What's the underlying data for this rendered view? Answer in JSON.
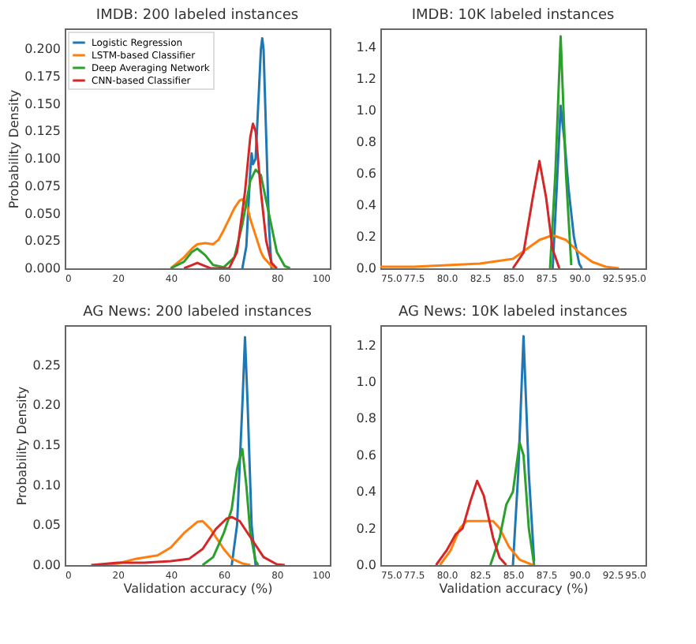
{
  "chart_data": [
    {
      "type": "line",
      "title": "IMDB: 200 labeled instances",
      "ylabel": "Probability Density",
      "legend": "top left",
      "xlim": [
        0,
        100
      ],
      "xticks": [
        0,
        20,
        40,
        60,
        80,
        100
      ],
      "ylim": [
        0,
        0.219
      ],
      "yticks": [
        {
          "value": 0,
          "label": "0.000"
        },
        {
          "value": 0.025,
          "label": "0.025"
        },
        {
          "value": 0.05,
          "label": "0.050"
        },
        {
          "value": 0.075,
          "label": "0.075"
        },
        {
          "value": 0.1,
          "label": "0.100"
        },
        {
          "value": 0.125,
          "label": "0.125"
        },
        {
          "value": 0.15,
          "label": "0.150"
        },
        {
          "value": 0.175,
          "label": "0.175"
        },
        {
          "value": 0.2,
          "label": "0.200"
        }
      ],
      "series": [
        {
          "name": "Logistic Regression",
          "color": "#1f77b4",
          "x": [
            67,
            68.5,
            70,
            70.5,
            71,
            72,
            73,
            74,
            74.5,
            75,
            76,
            77,
            78
          ],
          "values": [
            0,
            0.02,
            0.09,
            0.105,
            0.095,
            0.1,
            0.15,
            0.2,
            0.21,
            0.2,
            0.12,
            0.04,
            0
          ]
        },
        {
          "name": "LSTM-based Classifier",
          "color": "#ff7f0e",
          "x": [
            40,
            45,
            48,
            50,
            53,
            56,
            58,
            60,
            62,
            64,
            66,
            67,
            68,
            69,
            70,
            72,
            74,
            75,
            78,
            80
          ],
          "values": [
            0,
            0.01,
            0.018,
            0.022,
            0.023,
            0.022,
            0.026,
            0.035,
            0.045,
            0.055,
            0.062,
            0.063,
            0.06,
            0.055,
            0.045,
            0.03,
            0.015,
            0.01,
            0.002,
            0
          ]
        },
        {
          "name": "Deep Averaging Network",
          "color": "#2ca02c",
          "x": [
            40,
            45,
            48,
            50,
            53,
            56,
            60,
            64,
            67,
            70,
            72,
            74,
            77,
            80,
            83,
            85
          ],
          "values": [
            0,
            0.006,
            0.015,
            0.018,
            0.012,
            0.003,
            0.001,
            0.01,
            0.04,
            0.08,
            0.09,
            0.085,
            0.05,
            0.015,
            0.002,
            0
          ]
        },
        {
          "name": "CNN-based Classifier",
          "color": "#d62728",
          "x": [
            45,
            48,
            50,
            52,
            55,
            62,
            65,
            68,
            70,
            71,
            72,
            74,
            76,
            78,
            80
          ],
          "values": [
            0,
            0.003,
            0.005,
            0.003,
            0,
            0,
            0.015,
            0.07,
            0.12,
            0.132,
            0.125,
            0.07,
            0.025,
            0.005,
            0
          ]
        }
      ]
    },
    {
      "type": "line",
      "title": "IMDB: 10K labeled instances",
      "xlim": [
        75,
        95
      ],
      "ylim": [
        0,
        1.52
      ],
      "xticks": [
        {
          "value": 75,
          "label": "75.0"
        },
        77.5,
        {
          "value": 80,
          "label": "80.0"
        },
        82.5,
        {
          "value": 85,
          "label": "85.0"
        },
        87.5,
        {
          "value": 90,
          "label": "90.0"
        },
        92.5,
        {
          "value": 95,
          "label": "95.0"
        }
      ],
      "yticks": [
        {
          "value": 0,
          "label": "0.0"
        },
        0.2,
        0.4,
        0.6,
        0.8,
        {
          "value": 1,
          "label": "1.0"
        },
        1.2,
        1.4
      ],
      "series": [
        {
          "color": "#1f77b4",
          "x": [
            88,
            88.3,
            88.6,
            88.9,
            89.2,
            89.6,
            90,
            90.2
          ],
          "values": [
            0,
            0.5,
            1.03,
            0.8,
            0.5,
            0.2,
            0.03,
            0
          ]
        },
        {
          "color": "#ff7f0e",
          "x": [
            75,
            77.5,
            80,
            82.5,
            85,
            86,
            87,
            88,
            89,
            90,
            91,
            92,
            93
          ],
          "values": [
            0.01,
            0.01,
            0.02,
            0.03,
            0.06,
            0.12,
            0.18,
            0.21,
            0.18,
            0.1,
            0.04,
            0.01,
            0
          ]
        },
        {
          "color": "#2ca02c",
          "x": [
            87.8,
            88.2,
            88.6,
            89,
            89.4
          ],
          "values": [
            0,
            0.6,
            1.47,
            0.6,
            0.02
          ]
        },
        {
          "color": "#d62728",
          "x": [
            85,
            85.8,
            86.5,
            87,
            87.5,
            88,
            88.5
          ],
          "values": [
            0,
            0.1,
            0.45,
            0.68,
            0.45,
            0.12,
            0
          ]
        }
      ]
    },
    {
      "type": "line",
      "title": "AG News: 200 labeled instances",
      "xlabel": "Validation accuracy (%)",
      "ylabel": "Probability Density",
      "xlim": [
        0,
        100
      ],
      "xticks": [
        0,
        20,
        40,
        60,
        80,
        100
      ],
      "ylim": [
        0,
        0.3
      ],
      "yticks": [
        {
          "value": 0,
          "label": "0.00"
        },
        0.05,
        {
          "value": 0.1,
          "label": "0.10"
        },
        0.15,
        {
          "value": 0.2,
          "label": "0.20"
        },
        0.25
      ],
      "series": [
        {
          "color": "#1f77b4",
          "x": [
            63,
            65,
            67,
            68,
            69,
            70.5,
            72
          ],
          "values": [
            0,
            0.05,
            0.2,
            0.285,
            0.2,
            0.05,
            0
          ]
        },
        {
          "color": "#ff7f0e",
          "x": [
            15,
            20,
            27,
            35,
            40,
            45,
            50,
            52,
            55,
            60,
            63,
            67,
            70
          ],
          "values": [
            0,
            0.002,
            0.008,
            0.012,
            0.022,
            0.04,
            0.054,
            0.055,
            0.045,
            0.02,
            0.008,
            0.002,
            0
          ]
        },
        {
          "color": "#2ca02c",
          "x": [
            52,
            56,
            60,
            63,
            65,
            67,
            68.5,
            70,
            72,
            73
          ],
          "values": [
            0,
            0.01,
            0.04,
            0.07,
            0.12,
            0.145,
            0.1,
            0.04,
            0.005,
            0
          ]
        },
        {
          "color": "#d62728",
          "x": [
            10,
            20,
            30,
            40,
            47,
            52,
            57,
            61,
            63,
            66,
            70,
            75,
            80,
            83
          ],
          "values": [
            0,
            0.003,
            0.003,
            0.005,
            0.008,
            0.02,
            0.045,
            0.058,
            0.06,
            0.055,
            0.035,
            0.01,
            0.001,
            0
          ]
        }
      ]
    },
    {
      "type": "line",
      "title": "AG News: 10K labeled instances",
      "xlabel": "Validation accuracy (%)",
      "xlim": [
        75,
        95
      ],
      "ylim": [
        0,
        1.31
      ],
      "xticks": [
        {
          "value": 75,
          "label": "75.0"
        },
        77.5,
        {
          "value": 80,
          "label": "80.0"
        },
        82.5,
        {
          "value": 85,
          "label": "85.0"
        },
        87.5,
        {
          "value": 90,
          "label": "90.0"
        },
        92.5,
        {
          "value": 95,
          "label": "95.0"
        }
      ],
      "yticks": [
        {
          "value": 0,
          "label": "0.0"
        },
        0.2,
        0.4,
        0.6,
        0.8,
        {
          "value": 1,
          "label": "1.0"
        },
        1.2
      ],
      "series": [
        {
          "color": "#1f77b4",
          "x": [
            85,
            85.4,
            85.8,
            86.2,
            86.6
          ],
          "values": [
            0,
            0.5,
            1.25,
            0.5,
            0.02
          ]
        },
        {
          "color": "#ff7f0e",
          "x": [
            79.5,
            80.3,
            81,
            81.5,
            82.5,
            83.5,
            84,
            84.7,
            85.5,
            86.5
          ],
          "values": [
            0,
            0.08,
            0.2,
            0.24,
            0.24,
            0.24,
            0.2,
            0.1,
            0.03,
            0
          ]
        },
        {
          "color": "#2ca02c",
          "x": [
            83.3,
            84,
            84.5,
            85,
            85.5,
            85.8,
            86.2,
            86.6
          ],
          "values": [
            0,
            0.15,
            0.33,
            0.4,
            0.67,
            0.6,
            0.2,
            0
          ]
        },
        {
          "color": "#d62728",
          "x": [
            79.2,
            80,
            80.7,
            81.2,
            81.8,
            82.3,
            82.8,
            83.5,
            84,
            84.5
          ],
          "values": [
            0,
            0.08,
            0.17,
            0.2,
            0.35,
            0.46,
            0.38,
            0.15,
            0.04,
            0
          ]
        }
      ]
    }
  ]
}
